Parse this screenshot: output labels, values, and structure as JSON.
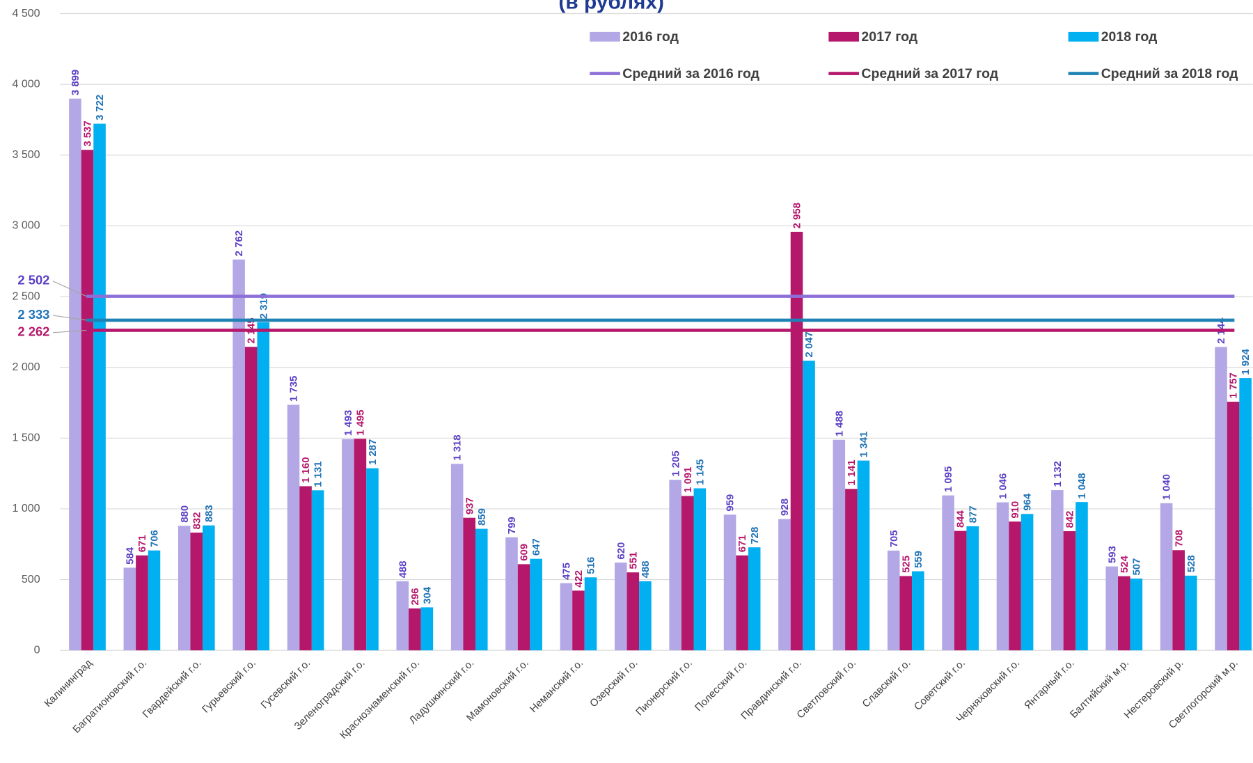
{
  "chart_data": {
    "type": "bar",
    "title": "(в рублях)",
    "categories": [
      "Калининград",
      "Багратионовский г.о.",
      "Гвардейский г.о.",
      "Гурьевский г.о.",
      "Гусевский г.о.",
      "Зеленоградский г.о.",
      "Краснознаменский г.о.",
      "Ладушкинский г.о.",
      "Мамоновский г.о.",
      "Неманский г.о.",
      "Озерский г.о.",
      "Пионерский г.о.",
      "Полесский г.о.",
      "Правдинский г.о.",
      "Светловский г.о.",
      "Славский г.о.",
      "Советский г.о.",
      "Черняховский г.о.",
      "Янтарный г.о.",
      "Балтийский м.р.",
      "Нестеровский р.",
      "Светлогорский м.р."
    ],
    "series": [
      {
        "name": "2016 год",
        "color": "#b4a7e5",
        "label_color": "#5b3fc4",
        "values": [
          3899,
          584,
          880,
          2762,
          1735,
          1493,
          488,
          1318,
          799,
          475,
          620,
          1205,
          959,
          928,
          1488,
          705,
          1095,
          1046,
          1132,
          593,
          1040,
          2144
        ],
        "value_labels": [
          "3 899",
          "584",
          "880",
          "2 762",
          "1 735",
          "1 493",
          "488",
          "1 318",
          "799",
          "475",
          "620",
          "1 205",
          "959",
          "928",
          "1 488",
          "705",
          "1 095",
          "1 046",
          "1 132",
          "593",
          "1 040",
          "2 144"
        ]
      },
      {
        "name": "2017 год",
        "color": "#b5176b",
        "label_color": "#b5176b",
        "values": [
          3537,
          671,
          832,
          2145,
          1160,
          1495,
          296,
          937,
          609,
          422,
          551,
          1091,
          671,
          2958,
          1141,
          525,
          844,
          910,
          842,
          524,
          708,
          1757
        ],
        "value_labels": [
          "3 537",
          "671",
          "832",
          "2 145",
          "1 160",
          "1 495",
          "296",
          "937",
          "609",
          "422",
          "551",
          "1 091",
          "671",
          "2 958",
          "1 141",
          "525",
          "844",
          "910",
          "842",
          "524",
          "708",
          "1 757"
        ]
      },
      {
        "name": "2018 год",
        "color": "#00b0f0",
        "label_color": "#1f73b7",
        "values": [
          3722,
          706,
          883,
          2319,
          1131,
          1287,
          304,
          859,
          647,
          516,
          488,
          1145,
          728,
          2047,
          1341,
          559,
          877,
          964,
          1048,
          507,
          528,
          1924
        ],
        "value_labels": [
          "3 722",
          "706",
          "883",
          "2 319",
          "1 131",
          "1 287",
          "304",
          "859",
          "647",
          "516",
          "488",
          "1 145",
          "728",
          "2 047",
          "1 341",
          "559",
          "877",
          "964",
          "1 048",
          "507",
          "528",
          "1 924"
        ]
      }
    ],
    "means": [
      {
        "name": "Средний за 2016 год",
        "color": "#8e6fd8",
        "label_color": "#5b3fc4",
        "value": 2502,
        "value_label": "2 502"
      },
      {
        "name": "Средний за 2017 год",
        "color": "#b5176b",
        "label_color": "#b5176b",
        "value": 2262,
        "value_label": "2 262"
      },
      {
        "name": "Средний за 2018 год",
        "color": "#1f82b4",
        "label_color": "#1f73b7",
        "value": 2333,
        "value_label": "2 333"
      }
    ],
    "ylim": [
      0,
      4500
    ],
    "yticks": [
      0,
      500,
      {
        "value": 1000,
        "label": "1 000"
      },
      {
        "value": 1500,
        "label": "1 500"
      },
      {
        "value": 2000,
        "label": "2 000"
      },
      {
        "value": 2500,
        "label": "2 500"
      },
      {
        "value": 3000,
        "label": "3 000"
      },
      {
        "value": 3500,
        "label": "3 500"
      },
      {
        "value": 4000,
        "label": "4 000"
      },
      {
        "value": 4500,
        "label": "4 500"
      }
    ],
    "grid": true
  }
}
